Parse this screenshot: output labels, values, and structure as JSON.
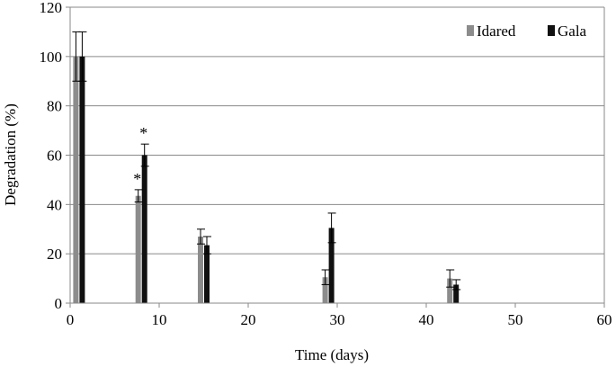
{
  "chart_data": {
    "type": "bar",
    "xlabel": "Time (days)",
    "ylabel": "Degradation (%)",
    "xlim": [
      0,
      60
    ],
    "ylim": [
      0,
      120
    ],
    "xticks": [
      "0",
      "10",
      "20",
      "30",
      "40",
      "50",
      "60"
    ],
    "yticks": [
      "0",
      "20",
      "40",
      "60",
      "80",
      "100",
      "120"
    ],
    "grid": "horizontal",
    "legend_position": "top-right",
    "series": [
      {
        "name": "Idared",
        "color": "#8c8c8c",
        "x": [
          1,
          8,
          15,
          29,
          43
        ],
        "values": [
          100,
          43.5,
          27,
          10.5,
          10
        ],
        "errors": [
          10,
          2.5,
          3,
          3,
          3.5
        ]
      },
      {
        "name": "Gala",
        "color": "#111111",
        "x": [
          1,
          8,
          15,
          29,
          43
        ],
        "values": [
          100,
          60,
          23.5,
          30.5,
          7.5
        ],
        "errors": [
          10,
          4.5,
          3.5,
          6,
          2
        ]
      }
    ],
    "annotations": [
      {
        "text": "*",
        "series": "Idared",
        "x": 8
      },
      {
        "text": "*",
        "series": "Gala",
        "x": 8
      }
    ]
  }
}
